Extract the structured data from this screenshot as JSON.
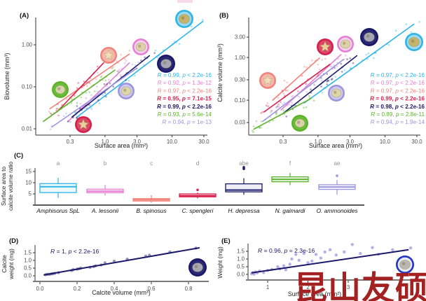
{
  "watermark": {
    "text": "昆山友硕",
    "color": "#A32121"
  },
  "colors": {
    "amphisorus": "#2CB5E8",
    "lessonii": "#E77FD4",
    "spinosus": "#F0837A",
    "spengleri": "#D8204D",
    "depressa": "#1B1869",
    "gaimardi": "#5DB32B",
    "ammonoides": "#9C96DF",
    "royal": "#2236C4",
    "axis": "#333333",
    "axis_gray": "#7a7a7a",
    "tick_text": "#4d4d4d",
    "letter_gray": "#8f8f8f"
  },
  "icon_palette": {
    "inner": {
      "amphisorus": "#9fd9ea",
      "lessonii": "#f0d3e8",
      "spinosus": "#f4b9ac",
      "spengleri": "#d84a66",
      "depressa": "#2a2a74",
      "gaimardi": "#6cbe3a",
      "ammonoides": "#cfc9ef",
      "royal": "#e8e8ee"
    },
    "photo": {
      "amphisorus": "#c8b36a",
      "lessonii": "#ded1a8",
      "spinosus": "#f0ddba",
      "spengleri": "#e8cf9a",
      "depressa": "#a8a6b2",
      "gaimardi": "#d9d3ac",
      "ammonoides": "#ded6a8",
      "royal": "#b9b7ae"
    }
  },
  "chart_data": [
    {
      "id": "A",
      "type": "scatter",
      "panel_label": "(A)",
      "xlabel": "Surface area (mm²)",
      "ylabel": "Biovolume (mm³)",
      "x_scale": "log",
      "y_scale": "log",
      "x_tick_labels": [
        "0.3",
        "1.0",
        "3.0",
        "10.0",
        "30.0"
      ],
      "y_tick_labels": [
        "1.00",
        "0.10",
        "0.01"
      ],
      "series": [
        {
          "key": "amphisorus",
          "line": [
            0.38,
            0.019,
            29,
            3.6
          ],
          "n": 26,
          "legend": {
            "r": "0.99",
            "op": "<",
            "p": "2.2e-16",
            "bold": false
          }
        },
        {
          "key": "lessonii",
          "line": [
            0.28,
            0.015,
            2.3,
            0.37
          ],
          "n": 22,
          "legend": {
            "r": "0.92",
            "op": "=",
            "p": "1.3e-12",
            "bold": false
          }
        },
        {
          "key": "spinosus",
          "line": [
            0.15,
            0.03,
            2.3,
            0.6
          ],
          "n": 22,
          "legend": {
            "r": "0.97",
            "op": "<",
            "p": "2.2e-16",
            "bold": false
          }
        },
        {
          "key": "spengleri",
          "line": [
            0.19,
            0.025,
            0.95,
            0.37
          ],
          "n": 20,
          "legend": {
            "r": "0.95",
            "op": "=",
            "p": "7.1e-15",
            "bold": true
          }
        },
        {
          "key": "depressa",
          "line": [
            0.32,
            0.019,
            4.6,
            0.55
          ],
          "n": 24,
          "legend": {
            "r": "0.99",
            "op": "<",
            "p": "2.2e-16",
            "bold": true
          }
        },
        {
          "key": "gaimardi",
          "line": [
            0.12,
            0.015,
            1.4,
            0.25
          ],
          "n": 22,
          "legend": {
            "r": "0.93",
            "op": "=",
            "p": "5.6e-14",
            "bold": false
          }
        },
        {
          "key": "ammonoides",
          "line": [
            0.16,
            0.011,
            3.0,
            0.28
          ],
          "n": 22,
          "legend": {
            "r": "0.94",
            "op": "=",
            "p": "1e-13",
            "bold": false
          }
        }
      ]
    },
    {
      "id": "B",
      "type": "scatter",
      "panel_label": "(B)",
      "xlabel": "Surface area (mm²)",
      "ylabel": "Calcite volume (mm³)",
      "x_scale": "log",
      "y_scale": "log",
      "x_tick_labels": [
        "0.3",
        "1.0",
        "3.0",
        "10.0",
        "30.0"
      ],
      "y_tick_labels": [
        "3.00",
        "1.00",
        "0.30",
        "0.10",
        "0.03"
      ],
      "series": [
        {
          "key": "amphisorus",
          "line": [
            0.62,
            0.086,
            27,
            6.0
          ],
          "n": 26,
          "legend": {
            "r": "0.97",
            "op": "<",
            "p": "2.2e-16",
            "bold": false
          }
        },
        {
          "key": "lessonii",
          "line": [
            0.28,
            0.059,
            2.2,
            1.17
          ],
          "n": 22,
          "legend": {
            "r": "0.97",
            "op": "<",
            "p": "2.2e-16",
            "bold": false
          }
        },
        {
          "key": "spinosus",
          "line": [
            0.21,
            0.1,
            1.05,
            0.97
          ],
          "n": 20,
          "legend": {
            "r": "0.97",
            "op": "<",
            "p": "2.2e-16",
            "bold": false
          }
        },
        {
          "key": "spengleri",
          "line": [
            0.156,
            0.053,
            1.5,
            0.69
          ],
          "n": 20,
          "legend": {
            "r": "0.99",
            "op": "<",
            "p": "2.2e-16",
            "bold": true
          }
        },
        {
          "key": "depressa",
          "line": [
            0.29,
            0.047,
            3.8,
            1.1
          ],
          "n": 24,
          "legend": {
            "r": "0.98",
            "op": "<",
            "p": "2.2e-16",
            "bold": true
          }
        },
        {
          "key": "gaimardi",
          "line": [
            0.11,
            0.021,
            0.79,
            0.11
          ],
          "n": 22,
          "legend": {
            "r": "0.89",
            "op": "=",
            "p": "2.8e-11",
            "bold": false
          }
        },
        {
          "key": "ammonoides",
          "line": [
            0.15,
            0.032,
            2.4,
            0.9
          ],
          "n": 22,
          "legend": {
            "r": "0.94",
            "op": "=",
            "p": "1.9e-14",
            "bold": false
          }
        }
      ]
    },
    {
      "id": "C",
      "type": "boxplot",
      "panel_label": "(C)",
      "ylabel_lines": [
        "Surface area to",
        "calcite volume ratio"
      ],
      "y_tick_labels": [
        "5",
        "10",
        "15"
      ],
      "y_ticks": [
        5,
        10,
        15
      ],
      "categories": [
        {
          "label": "Amphisorus SpL",
          "letter": "a",
          "key": "amphisorus",
          "stats": [
            3.2,
            5.6,
            8.2,
            9.6,
            12.2
          ],
          "outliers": []
        },
        {
          "label": "A. lessonii",
          "letter": "b",
          "key": "lessonii",
          "stats": [
            4.3,
            5.5,
            6.2,
            7.1,
            9.0
          ],
          "outliers": []
        },
        {
          "label": "B. spinosus",
          "letter": "c",
          "key": "spinosus",
          "stats": [
            1.1,
            1.8,
            2.4,
            2.9,
            4.4
          ],
          "outliers": []
        },
        {
          "label": "C. spengleri",
          "letter": "d",
          "key": "spengleri",
          "stats": [
            3.0,
            3.7,
            4.2,
            5.0,
            5.6
          ],
          "outliers": [
            6.8
          ]
        },
        {
          "label": "H. depressa",
          "letter": "abe",
          "key": "depressa",
          "stats": [
            4.6,
            5.9,
            6.7,
            9.5,
            12.0
          ],
          "outliers": [
            16.2,
            16.9
          ]
        },
        {
          "label": "N. gaimardi",
          "letter": "f",
          "key": "gaimardi",
          "stats": [
            8.9,
            10.4,
            11.5,
            12.6,
            14.4
          ],
          "outliers": []
        },
        {
          "label": "O. ammonoides",
          "letter": "ae",
          "key": "ammonoides",
          "stats": [
            4.7,
            7.0,
            8.1,
            9.1,
            11.2
          ],
          "outliers": [
            13.1
          ]
        }
      ]
    },
    {
      "id": "D",
      "type": "scatter-linear",
      "panel_label": "(D)",
      "xlabel": "Calcite volume (mm³)",
      "ylabel_lines": [
        "Calcite",
        "weight (mg)"
      ],
      "x_tick_labels": [
        "0.0",
        "0.2",
        "0.4",
        "0.6",
        "0.8"
      ],
      "x_ticks": [
        0.0,
        0.2,
        0.4,
        0.6,
        0.8
      ],
      "y_tick_labels": [
        "0.0",
        "0.5",
        "1.0",
        "1.5"
      ],
      "y_ticks": [
        0.0,
        0.5,
        1.0,
        1.5
      ],
      "annotation": {
        "r": "1",
        "op": "<",
        "p": "2.2e-16"
      },
      "line": [
        0.02,
        0.05,
        0.86,
        1.82
      ],
      "point_key": "depressa",
      "points": [
        [
          0.03,
          0.07
        ],
        [
          0.04,
          0.1
        ],
        [
          0.05,
          0.09
        ],
        [
          0.06,
          0.12
        ],
        [
          0.07,
          0.14
        ],
        [
          0.08,
          0.16
        ],
        [
          0.1,
          0.2
        ],
        [
          0.17,
          0.34
        ],
        [
          0.18,
          0.4
        ],
        [
          0.2,
          0.43
        ],
        [
          0.21,
          0.46
        ],
        [
          0.22,
          0.5
        ],
        [
          0.27,
          0.55
        ],
        [
          0.29,
          0.6
        ],
        [
          0.3,
          0.65
        ],
        [
          0.33,
          0.7
        ],
        [
          0.35,
          0.84
        ],
        [
          0.4,
          0.95
        ],
        [
          0.47,
          1.08
        ],
        [
          0.57,
          1.28
        ],
        [
          0.59,
          1.34
        ],
        [
          0.7,
          1.55
        ],
        [
          0.84,
          1.8
        ]
      ]
    },
    {
      "id": "E",
      "type": "scatter-linear",
      "panel_label": "(E)",
      "xlabel": "Surface area (mm²)",
      "ylabel_lines": [
        "Weight (mg)"
      ],
      "x_tick_labels": [
        "1",
        "2",
        "3"
      ],
      "x_ticks": [
        1,
        2,
        3
      ],
      "y_tick_labels": [
        "0.0",
        "0.5",
        "1.0",
        "1.5"
      ],
      "y_ticks": [
        0.0,
        0.5,
        1.0,
        1.5
      ],
      "annotation": {
        "r": "0.96",
        "op": "=",
        "p": "2.3e-16"
      },
      "line": [
        0.6,
        0.1,
        4.5,
        1.6
      ],
      "point_key": "ammonoides",
      "points": [
        [
          0.6,
          0.05
        ],
        [
          0.63,
          0.12
        ],
        [
          0.66,
          0.02
        ],
        [
          0.7,
          0.16
        ],
        [
          0.74,
          0.1
        ],
        [
          0.8,
          0.22
        ],
        [
          0.9,
          0.12
        ],
        [
          1.0,
          0.26
        ],
        [
          1.1,
          0.32
        ],
        [
          1.25,
          0.5
        ],
        [
          1.3,
          0.36
        ],
        [
          1.4,
          0.56
        ],
        [
          1.45,
          0.3
        ],
        [
          1.55,
          0.66
        ],
        [
          1.6,
          1.0
        ],
        [
          1.7,
          1.3
        ],
        [
          1.78,
          0.92
        ],
        [
          1.9,
          1.36
        ],
        [
          2.0,
          0.76
        ],
        [
          2.1,
          0.86
        ],
        [
          2.2,
          1.3
        ],
        [
          2.32,
          1.06
        ],
        [
          2.42,
          1.46
        ],
        [
          2.55,
          1.6
        ],
        [
          2.7,
          1.26
        ],
        [
          2.9,
          1.46
        ],
        [
          3.1,
          1.94
        ],
        [
          3.3,
          1.36
        ],
        [
          3.6,
          1.74
        ],
        [
          3.75,
          1.3
        ],
        [
          4.1,
          1.6
        ],
        [
          4.55,
          1.72
        ]
      ]
    }
  ]
}
